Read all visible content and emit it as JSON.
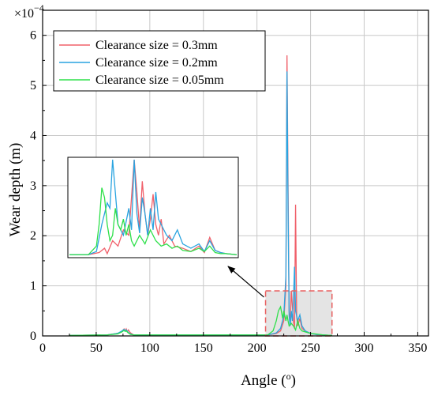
{
  "chart_data": {
    "type": "line",
    "xlabel": "Angle (",
    "xlabel_sup": "o",
    "xlabel_close": ")",
    "ylabel": "Wear depth (m)",
    "y_multiplier_base": "×10",
    "y_multiplier_exp": "−4",
    "xlim": [
      0,
      360
    ],
    "ylim": [
      0,
      6.5
    ],
    "x_ticks": [
      0,
      50,
      100,
      150,
      200,
      250,
      300,
      350
    ],
    "y_ticks": [
      0,
      1,
      2,
      3,
      4,
      5,
      6
    ],
    "grid": true,
    "legend_position": "top-left",
    "series": [
      {
        "name": "Clearance size = 0.3mm",
        "color": "#f0606a",
        "x": [
          25,
          60,
          70,
          74,
          76,
          77,
          78,
          79,
          80,
          82,
          85,
          210,
          218,
          222,
          225,
          227,
          228,
          229,
          230,
          231,
          232,
          234,
          235,
          236,
          237,
          238,
          240,
          242,
          245,
          250,
          255,
          262,
          270
        ],
        "y": [
          0.01,
          0.02,
          0.05,
          0.09,
          0.14,
          0.1,
          0.14,
          0.08,
          0.12,
          0.06,
          0.02,
          0.02,
          0.05,
          0.1,
          0.3,
          1.0,
          5.6,
          3.0,
          0.5,
          0.25,
          0.9,
          0.3,
          0.15,
          2.62,
          0.4,
          0.2,
          0.35,
          0.15,
          0.1,
          0.05,
          0.03,
          0.02,
          0.01
        ]
      },
      {
        "name": "Clearance size = 0.2mm",
        "color": "#2aa4e0",
        "x": [
          25,
          60,
          70,
          74,
          76,
          77,
          78,
          80,
          82,
          85,
          210,
          218,
          222,
          225,
          227,
          228,
          229,
          230,
          231,
          232,
          233,
          234,
          235,
          236,
          238,
          240,
          242,
          245,
          250,
          255,
          262,
          270
        ],
        "y": [
          0.01,
          0.02,
          0.05,
          0.1,
          0.13,
          0.1,
          0.12,
          0.07,
          0.04,
          0.02,
          0.02,
          0.06,
          0.15,
          0.4,
          1.2,
          5.28,
          2.5,
          0.4,
          0.2,
          0.5,
          0.3,
          0.7,
          1.38,
          0.5,
          0.3,
          0.42,
          0.2,
          0.1,
          0.05,
          0.03,
          0.02,
          0.01
        ]
      },
      {
        "name": "Clearance size = 0.05mm",
        "color": "#2ee04a",
        "x": [
          25,
          60,
          70,
          74,
          76,
          77,
          78,
          80,
          82,
          85,
          210,
          215,
          218,
          220,
          222,
          224,
          225,
          227,
          228,
          229,
          230,
          232,
          234,
          236,
          238,
          240,
          242,
          245,
          250,
          255,
          262,
          270
        ],
        "y": [
          0.01,
          0.02,
          0.04,
          0.08,
          0.11,
          0.09,
          0.1,
          0.06,
          0.03,
          0.02,
          0.02,
          0.1,
          0.3,
          0.5,
          0.58,
          0.35,
          0.5,
          0.3,
          0.42,
          0.3,
          0.2,
          0.25,
          0.2,
          0.12,
          0.3,
          0.15,
          0.1,
          0.08,
          0.05,
          0.04,
          0.02,
          0.01
        ]
      }
    ],
    "zoom_box": {
      "x_range": [
        208,
        270
      ],
      "y_range": [
        0,
        0.9
      ],
      "color": "#e86060"
    },
    "inset": {
      "x_range": [
        208,
        270
      ],
      "y_range": [
        0,
        0.9
      ],
      "red_x": [
        208,
        215,
        217,
        219,
        221,
        222,
        224,
        226,
        228,
        230,
        232,
        233,
        234,
        235,
        236,
        237,
        238,
        239,
        240,
        241,
        242,
        243,
        245,
        247,
        250,
        253,
        256,
        258,
        260,
        262,
        264,
        266,
        270
      ],
      "red_y": [
        0.02,
        0.02,
        0.03,
        0.04,
        0.08,
        0.03,
        0.15,
        0.1,
        0.25,
        0.2,
        0.9,
        0.6,
        0.25,
        0.7,
        0.4,
        0.2,
        0.35,
        0.58,
        0.3,
        0.2,
        0.35,
        0.12,
        0.2,
        0.1,
        0.08,
        0.05,
        0.1,
        0.04,
        0.18,
        0.06,
        0.04,
        0.03,
        0.02
      ],
      "blue_x": [
        208,
        215,
        218,
        220,
        222,
        223,
        224,
        226,
        228,
        230,
        231,
        232,
        233,
        234,
        235,
        236,
        237,
        238,
        239,
        240,
        241,
        242,
        244,
        246,
        248,
        250,
        253,
        256,
        258,
        260,
        262,
        264,
        266,
        270
      ],
      "blue_y": [
        0.02,
        0.02,
        0.05,
        0.3,
        0.5,
        0.45,
        0.9,
        0.3,
        0.2,
        0.45,
        0.25,
        0.9,
        0.4,
        0.22,
        0.55,
        0.4,
        0.2,
        0.45,
        0.25,
        0.6,
        0.35,
        0.3,
        0.2,
        0.15,
        0.25,
        0.12,
        0.08,
        0.12,
        0.05,
        0.15,
        0.06,
        0.04,
        0.03,
        0.02
      ],
      "green_x": [
        208,
        215,
        218,
        219,
        220,
        221,
        222,
        223,
        224,
        225,
        226,
        227,
        228,
        229,
        230,
        231,
        232,
        234,
        236,
        238,
        240,
        242,
        244,
        246,
        248,
        250,
        253,
        256,
        258,
        260,
        262,
        264,
        266,
        270
      ],
      "green_y": [
        0.02,
        0.02,
        0.1,
        0.3,
        0.64,
        0.55,
        0.3,
        0.15,
        0.2,
        0.45,
        0.3,
        0.25,
        0.35,
        0.2,
        0.3,
        0.15,
        0.1,
        0.2,
        0.12,
        0.25,
        0.15,
        0.1,
        0.12,
        0.08,
        0.1,
        0.06,
        0.05,
        0.08,
        0.05,
        0.1,
        0.04,
        0.03,
        0.03,
        0.02
      ]
    }
  }
}
